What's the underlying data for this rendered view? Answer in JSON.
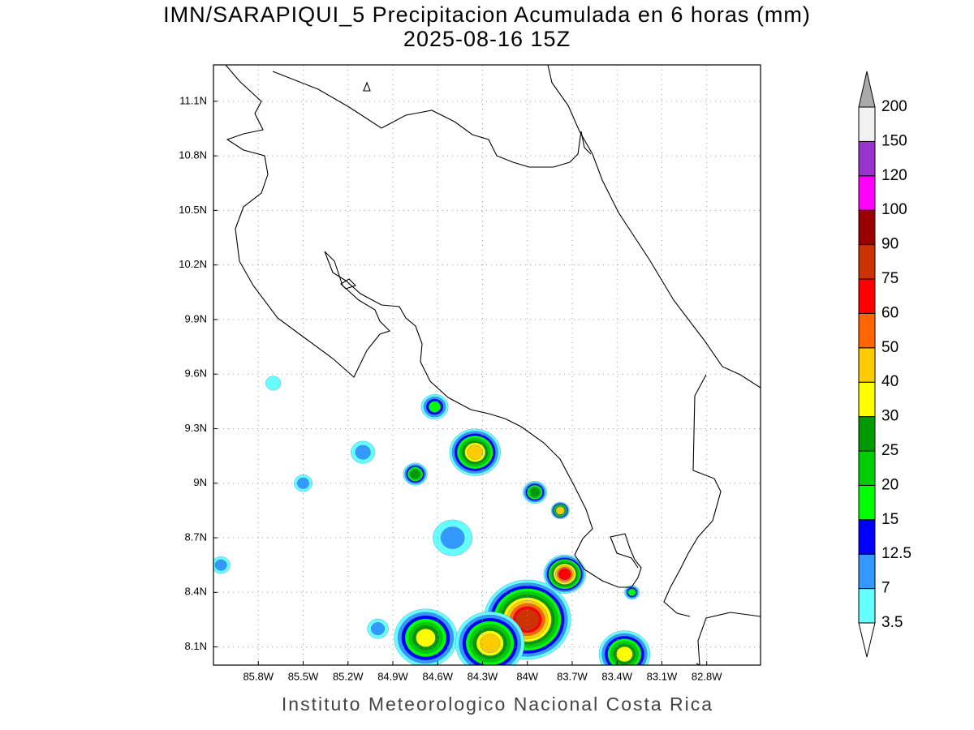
{
  "title": "IMN/SARAPIQUI_5 Precipitacion Acumulada en 6 horas (mm)",
  "subtitle": "2025-08-16 15Z",
  "footer": "Instituto Meteorologico Nacional Costa Rica",
  "map": {
    "xlim": [
      -86.1,
      -82.44
    ],
    "ylim": [
      8.0,
      11.3
    ],
    "grid": true,
    "xticks": [
      {
        "value": -85.8,
        "label": "85.8W"
      },
      {
        "value": -85.5,
        "label": "85.5W"
      },
      {
        "value": -85.2,
        "label": "85.2W"
      },
      {
        "value": -84.9,
        "label": "84.9W"
      },
      {
        "value": -84.6,
        "label": "84.6W"
      },
      {
        "value": -84.3,
        "label": "84.3W"
      },
      {
        "value": -84,
        "label": "84W"
      },
      {
        "value": -83.7,
        "label": "83.7W"
      },
      {
        "value": -83.4,
        "label": "83.4W"
      },
      {
        "value": -83.1,
        "label": "83.1W"
      },
      {
        "value": -82.8,
        "label": "82.8W"
      }
    ],
    "yticks": [
      {
        "value": 11.1,
        "label": "11.1N"
      },
      {
        "value": 10.8,
        "label": "10.8N"
      },
      {
        "value": 10.5,
        "label": "10.5N"
      },
      {
        "value": 10.2,
        "label": "10.2N"
      },
      {
        "value": 9.9,
        "label": "9.9N"
      },
      {
        "value": 9.6,
        "label": "9.6N"
      },
      {
        "value": 9.3,
        "label": "9.3N"
      },
      {
        "value": 9,
        "label": "9N"
      },
      {
        "value": 8.7,
        "label": "8.7N"
      },
      {
        "value": 8.4,
        "label": "8.4N"
      },
      {
        "value": 8.1,
        "label": "8.1N"
      }
    ],
    "cells": [
      {
        "lon": -84.0,
        "lat": 8.25,
        "size": 0.28,
        "max": 75
      },
      {
        "lon": -83.75,
        "lat": 8.5,
        "size": 0.13,
        "max": 60
      },
      {
        "lon": -84.35,
        "lat": 9.17,
        "size": 0.16,
        "max": 40
      },
      {
        "lon": -84.68,
        "lat": 8.15,
        "size": 0.2,
        "max": 30
      },
      {
        "lon": -84.25,
        "lat": 8.12,
        "size": 0.22,
        "max": 40
      },
      {
        "lon": -83.35,
        "lat": 8.06,
        "size": 0.16,
        "max": 30
      },
      {
        "lon": -83.78,
        "lat": 8.85,
        "size": 0.05,
        "max": 40
      },
      {
        "lon": -84.62,
        "lat": 9.42,
        "size": 0.08,
        "max": 15
      },
      {
        "lon": -83.95,
        "lat": 8.95,
        "size": 0.07,
        "max": 25
      },
      {
        "lon": -85.5,
        "lat": 9.0,
        "size": 0.05,
        "max": 7
      },
      {
        "lon": -84.75,
        "lat": 9.05,
        "size": 0.07,
        "max": 25
      },
      {
        "lon": -86.05,
        "lat": 8.55,
        "size": 0.05,
        "max": 7
      },
      {
        "lon": -85.0,
        "lat": 8.2,
        "size": 0.06,
        "max": 7
      },
      {
        "lon": -83.3,
        "lat": 8.4,
        "size": 0.04,
        "max": 15
      },
      {
        "lon": -85.7,
        "lat": 9.55,
        "size": 0.04,
        "max": 3.5
      },
      {
        "lon": -85.1,
        "lat": 9.17,
        "size": 0.07,
        "max": 7
      },
      {
        "lon": -84.5,
        "lat": 8.7,
        "size": 0.12,
        "max": 7
      }
    ]
  },
  "colorbar": {
    "levels": [
      3.5,
      7,
      12.5,
      15,
      20,
      25,
      30,
      40,
      50,
      60,
      75,
      90,
      100,
      120,
      150,
      200
    ],
    "colors": [
      "#66ffff",
      "#3399ff",
      "#0000ff",
      "#00ff00",
      "#00cc00",
      "#009900",
      "#ffff00",
      "#ffcc00",
      "#ff6600",
      "#ff0000",
      "#cc3300",
      "#990000",
      "#ff00ff",
      "#9933cc",
      "#f2f2f2"
    ],
    "over_color": "#aaaaaa",
    "under_color": "#ffffff"
  }
}
